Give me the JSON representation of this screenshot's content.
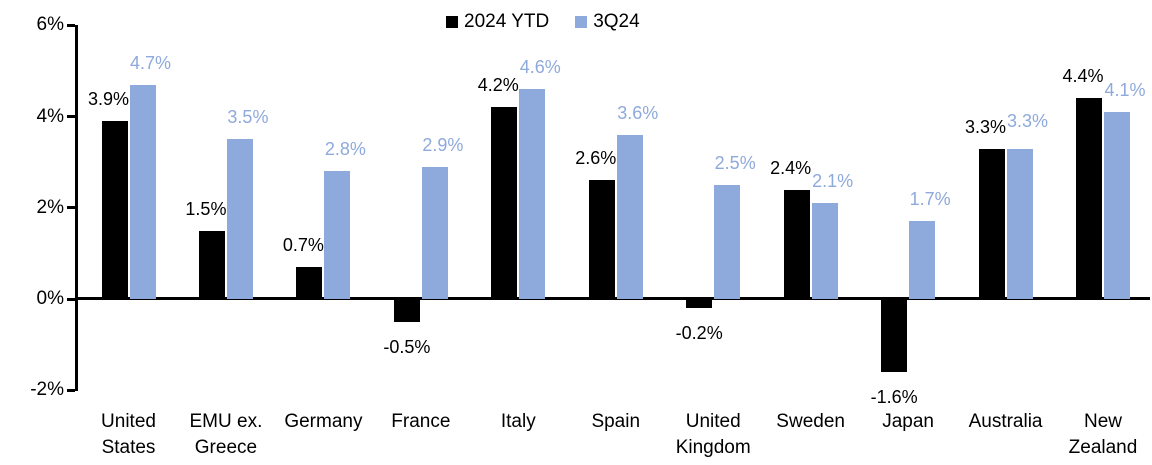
{
  "colors": {
    "series_2024ytd": "#000000",
    "series_3q24": "#8EA9DB",
    "axis": "#000000",
    "background": "#FFFFFF"
  },
  "legend": {
    "items": [
      {
        "label": "2024 YTD",
        "color": "#000000"
      },
      {
        "label": "3Q24",
        "color": "#8EA9DB"
      }
    ]
  },
  "chart_data": {
    "type": "bar",
    "title": "",
    "xlabel": "",
    "ylabel": "",
    "categories": [
      "United States",
      "EMU ex. Greece",
      "Germany",
      "France",
      "Italy",
      "Spain",
      "United Kingdom",
      "Sweden",
      "Japan",
      "Australia",
      "New Zealand"
    ],
    "category_display_lines": [
      [
        "United",
        "States"
      ],
      [
        "EMU ex.",
        "Greece"
      ],
      [
        "Germany"
      ],
      [
        "France"
      ],
      [
        "Italy"
      ],
      [
        "Spain"
      ],
      [
        "United",
        "Kingdom"
      ],
      [
        "Sweden"
      ],
      [
        "Japan"
      ],
      [
        "Australia"
      ],
      [
        "New",
        "Zealand"
      ]
    ],
    "series": [
      {
        "name": "2024 YTD",
        "color": "#000000",
        "values": [
          3.9,
          1.5,
          0.7,
          -0.5,
          4.2,
          2.6,
          -0.2,
          2.4,
          -1.6,
          3.3,
          4.4
        ],
        "labels": [
          "3.9%",
          "1.5%",
          "0.7%",
          "-0.5%",
          "4.2%",
          "2.6%",
          "-0.2%",
          "2.4%",
          "-1.6%",
          "3.3%",
          "4.4%"
        ]
      },
      {
        "name": "3Q24",
        "color": "#8EA9DB",
        "values": [
          4.7,
          3.5,
          2.8,
          2.9,
          4.6,
          3.6,
          2.5,
          2.1,
          1.7,
          3.3,
          4.1
        ],
        "labels": [
          "4.7%",
          "3.5%",
          "2.8%",
          "2.9%",
          "4.6%",
          "3.6%",
          "2.5%",
          "2.1%",
          "1.7%",
          "3.3%",
          "4.1%"
        ]
      }
    ],
    "y_axis": {
      "ticks": [
        {
          "label": "6%",
          "value": 6
        },
        {
          "label": "4%",
          "value": 4
        },
        {
          "label": "2%",
          "value": 2
        },
        {
          "label": "0%",
          "value": 0
        },
        {
          "label": "-2%",
          "value": -2
        }
      ],
      "ylim": [
        -2,
        6
      ]
    },
    "value_label_format": "percent_one_decimal",
    "legend_position": "top-center",
    "grid": false
  }
}
